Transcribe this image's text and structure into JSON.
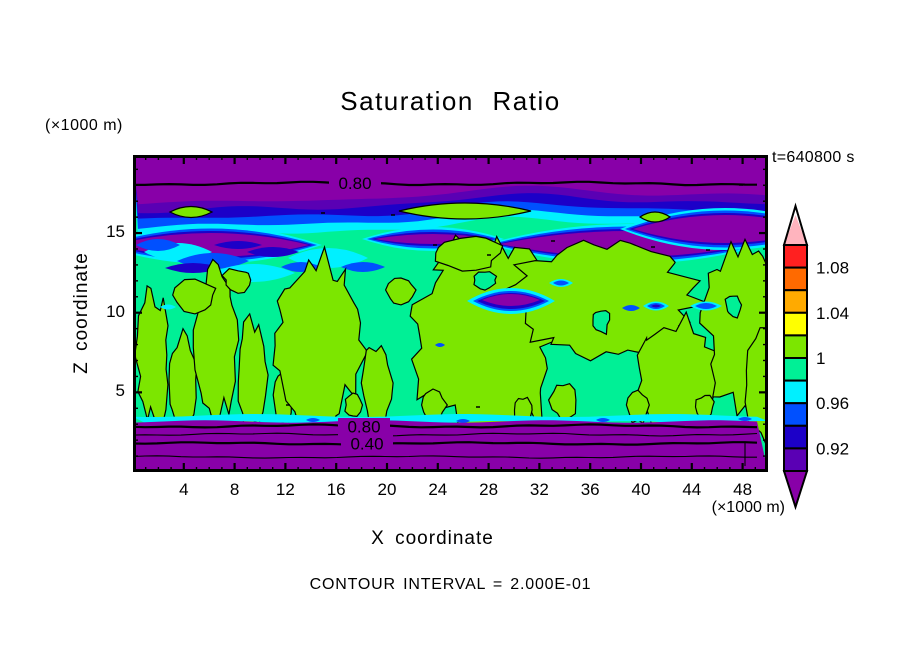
{
  "page": {
    "background": "#FFFFFF",
    "foreground": "#000000"
  },
  "chart_data": {
    "type": "heatmap",
    "variant": "filled_contour",
    "title": "Saturation Ratio",
    "time_stamp": "t=640800 s",
    "xlabel": "X coordinate",
    "ylabel": "Z coordinate",
    "x_units": "(×1000 m)",
    "z_units": "(×1000 m)",
    "footer": "CONTOUR INTERVAL = 2.000E-01",
    "xlim": [
      0,
      50
    ],
    "zlim": [
      0,
      19.9
    ],
    "x_major_ticks": [
      4,
      8,
      12,
      16,
      20,
      24,
      28,
      32,
      36,
      40,
      44,
      48
    ],
    "x_minor_step": 1,
    "z_major_ticks": [
      5,
      10,
      15
    ],
    "z_minor_step": 1,
    "grid": false,
    "labeled_contours": [
      {
        "text": "0.80",
        "region": "top"
      },
      {
        "text": "0.80",
        "region": "bottom"
      },
      {
        "text": "0.40",
        "region": "bottom"
      }
    ],
    "colorbar": {
      "orientation": "vertical",
      "levels": [
        0.9,
        0.92,
        0.94,
        0.96,
        0.98,
        1.0,
        1.02,
        1.04,
        1.06,
        1.08,
        1.1
      ],
      "labels": [
        {
          "text": "1.08",
          "boundary": 1
        },
        {
          "text": "1.04",
          "boundary": 3
        },
        {
          "text": "1",
          "boundary": 5
        },
        {
          "text": "0.96",
          "boundary": 7
        },
        {
          "text": "0.92",
          "boundary": 9
        }
      ],
      "cell_colors_top_down": [
        "#FF2020",
        "#FF6A00",
        "#FFAA00",
        "#FFFF00",
        "#7CE600",
        "#00F096",
        "#00F0FF",
        "#0050FF",
        "#1C00C8",
        "#5A00B4"
      ],
      "over_color": "#FFB4BE",
      "under_color": "#8800A8"
    },
    "field_colors": {
      "background": "#00F096",
      "updraft": "#7CE600",
      "band_purple": "#8800A8",
      "band_indigo": "#5A00B4",
      "band_navy": "#1C00C8",
      "band_blue": "#0050FF",
      "band_cyan": "#00F0FF",
      "contour_line": "#000000"
    }
  }
}
